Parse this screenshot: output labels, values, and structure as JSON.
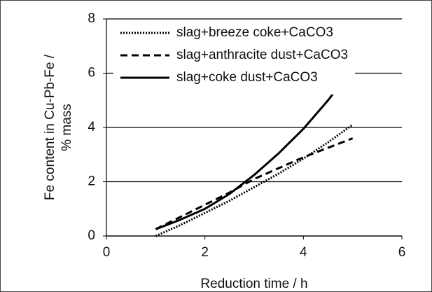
{
  "chart_data": {
    "type": "line",
    "x_label": "Reduction time / h",
    "y_label_lines": [
      "Fe content in Cu-Pb-Fe /",
      "% mass"
    ],
    "x": [
      1,
      1.5,
      2,
      2.5,
      3,
      3.5,
      4,
      4.5,
      5
    ],
    "series": [
      {
        "name": "slag+breeze coke+CaCO3",
        "color": "#000000",
        "line_style": "dotted",
        "values": [
          0.0,
          0.4,
          0.85,
          1.3,
          1.8,
          2.3,
          2.85,
          3.45,
          4.1
        ]
      },
      {
        "name": "slag+anthracite dust+CaCO3",
        "color": "#000000",
        "line_style": "dashed",
        "values": [
          0.25,
          0.7,
          1.15,
          1.6,
          2.1,
          2.5,
          2.9,
          3.25,
          3.6
        ]
      },
      {
        "name": "slag+coke dust+CaCO3",
        "color": "#000000",
        "line_style": "solid",
        "values": [
          0.25,
          0.6,
          1.0,
          1.55,
          2.25,
          3.05,
          3.95,
          5.0,
          6.2
        ]
      }
    ],
    "xlim": [
      0,
      6
    ],
    "xticks": [
      0,
      2,
      4,
      6
    ],
    "ylim": [
      0,
      8
    ],
    "yticks": [
      0,
      2,
      4,
      6,
      8
    ],
    "grid": true,
    "legend": "top-left"
  }
}
